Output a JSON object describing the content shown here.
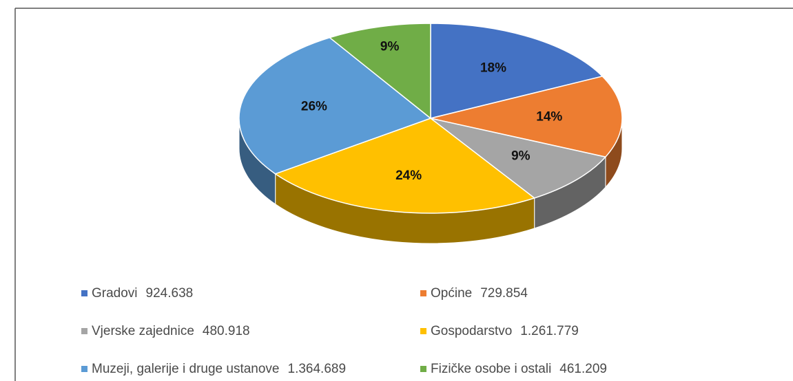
{
  "chart_data": {
    "type": "pie",
    "categories": [
      "Gradovi",
      "Općine",
      "Vjerske zajednice",
      "Gospodarstvo",
      "Muzeji, galerije i druge ustanove",
      "Fizičke osobe i ostali"
    ],
    "values": [
      924638,
      729854,
      480918,
      1261779,
      1364689,
      461209
    ],
    "value_labels": [
      "924.638",
      "729.854",
      "480.918",
      "1.261.779",
      "1.364.689",
      "461.209"
    ],
    "percent_labels": [
      "18%",
      "14%",
      "9%",
      "24%",
      "26%",
      "9%"
    ],
    "colors": [
      "#4472c4",
      "#ed7d31",
      "#a5a5a5",
      "#ffc000",
      "#5b9bd5",
      "#70ad47"
    ]
  }
}
